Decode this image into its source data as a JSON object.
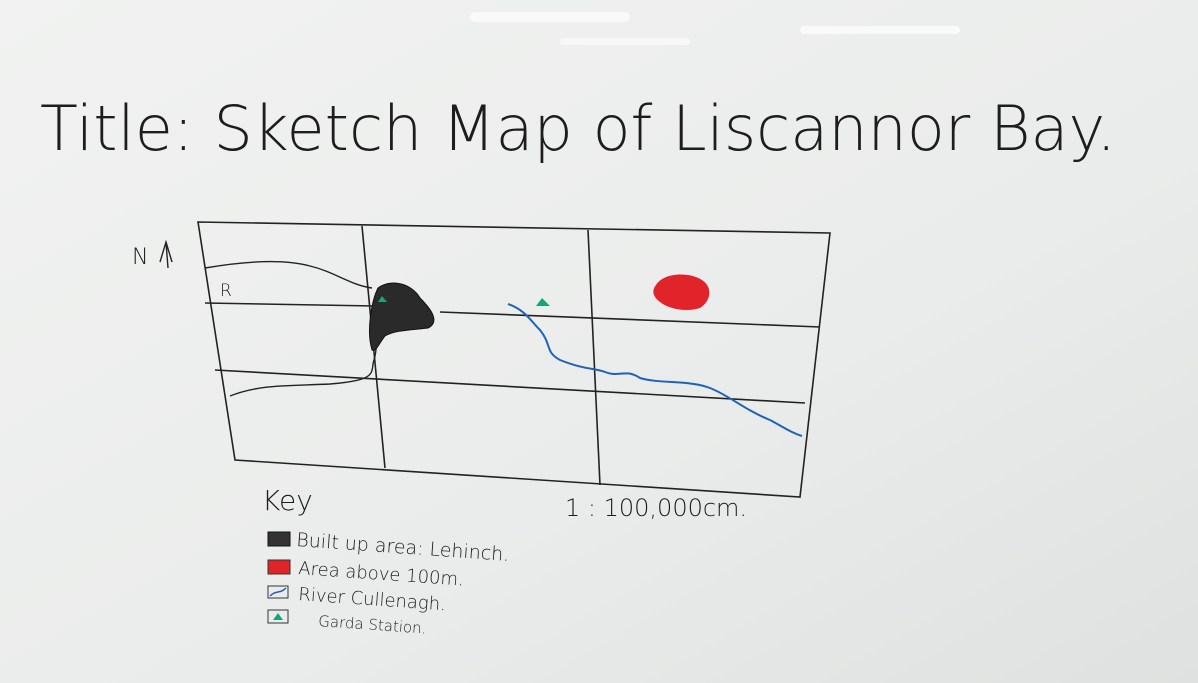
{
  "title": "Title: Sketch Map of Liscannor Bay.",
  "map": {
    "north_label": "N",
    "grid_label": "R",
    "scale": "1 : 100,000cm."
  },
  "key": {
    "heading": "Key",
    "items": [
      "Built up area: Lehinch.",
      "Area above 100m.",
      "River Cullenagh.",
      "Garda Station."
    ]
  }
}
